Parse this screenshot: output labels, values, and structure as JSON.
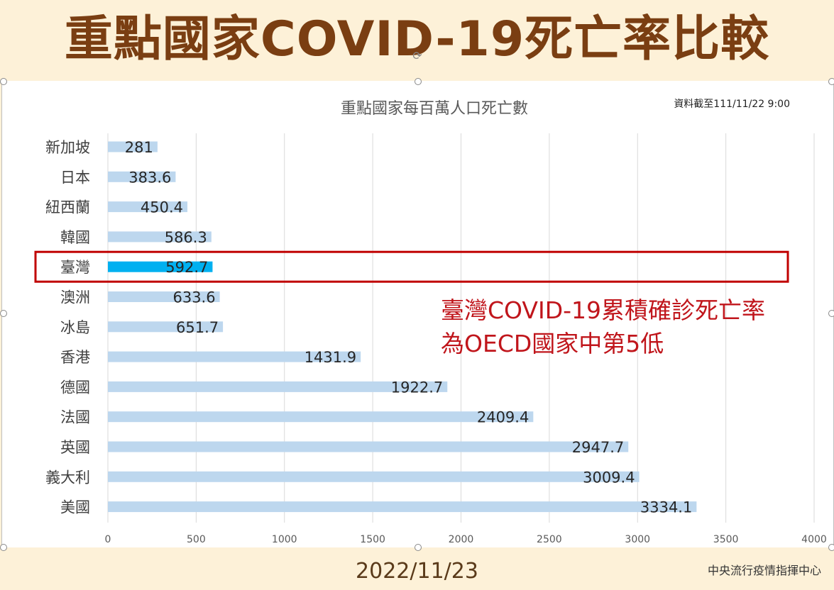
{
  "header": {
    "title": "重點國家COVID-19死亡率比較"
  },
  "footer": {
    "date": "2022/11/23",
    "org": "中央流行疫情指揮中心"
  },
  "annotation": {
    "line1": "臺灣COVID-19累積確診死亡率",
    "line2": "為OECD國家中第5低",
    "color": "#c0151b"
  },
  "chart_data": {
    "type": "bar",
    "orientation": "horizontal",
    "title": "重點國家每百萬人口死亡數",
    "note": "資料截至111/11/22 9:00",
    "categories": [
      "新加坡",
      "日本",
      "紐西蘭",
      "韓國",
      "臺灣",
      "澳洲",
      "冰島",
      "香港",
      "德國",
      "法國",
      "英國",
      "義大利",
      "美國"
    ],
    "values": [
      281,
      383.6,
      450.4,
      586.3,
      592.7,
      633.6,
      651.7,
      1431.9,
      1922.7,
      2409.4,
      2947.7,
      3009.4,
      3334.1
    ],
    "value_labels": [
      "281",
      "383.6",
      "450.4",
      "586.3",
      "592.7",
      "633.6",
      "651.7",
      "1431.9",
      "1922.7",
      "2409.4",
      "2947.7",
      "3009.4",
      "3334.1"
    ],
    "highlight": "臺灣",
    "xlim": [
      0,
      4000
    ],
    "xticks": [
      0,
      500,
      1000,
      1500,
      2000,
      2500,
      3000,
      3500,
      4000
    ],
    "grid": true,
    "colors": {
      "bar": "#bdd7ee",
      "highlight": "#00b0f0",
      "box": "#c00000"
    }
  }
}
